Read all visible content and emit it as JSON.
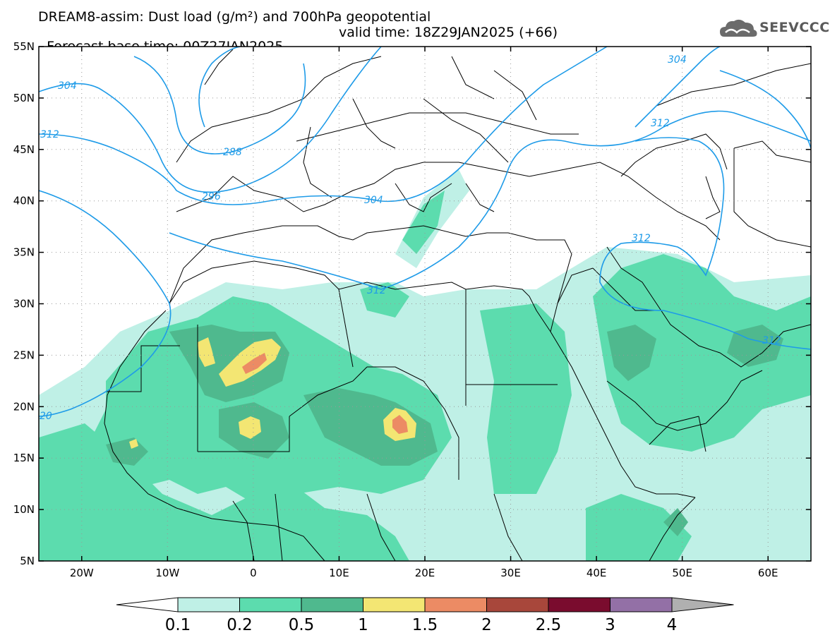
{
  "header": {
    "line1": "DREAM8-assim: Dust load (g/m²) and 700hPa geopotential",
    "line2_base": "Forecast base time: 00Z27JAN2025",
    "line2_valid": "valid time: 18Z29JAN2025 (+66)"
  },
  "logo": {
    "text": "SEEVCCC",
    "icon": "cloud-icon"
  },
  "map": {
    "lon_range": [
      -25,
      65
    ],
    "lat_range": [
      5,
      55
    ],
    "lat_ticks": [
      "55N",
      "50N",
      "45N",
      "40N",
      "35N",
      "30N",
      "25N",
      "20N",
      "15N",
      "10N",
      "5N"
    ],
    "lon_ticks": [
      "20W",
      "10W",
      "0",
      "10E",
      "20E",
      "30E",
      "40E",
      "50E",
      "60E"
    ],
    "isoline_labels": [
      "304",
      "312",
      "288",
      "296",
      "304",
      "312",
      "312",
      "304",
      "312",
      "20",
      "312"
    ],
    "isoline_color": "#1e9be8"
  },
  "colorbar": {
    "labels": [
      "0.1",
      "0.2",
      "0.5",
      "1",
      "1.5",
      "2",
      "2.5",
      "3",
      "4"
    ],
    "colors": [
      "#bff0e6",
      "#5cdcae",
      "#4fb98e",
      "#f3e673",
      "#ec8b64",
      "#a8473b",
      "#7a0c2e",
      "#9370a6",
      "#b0b0b0"
    ],
    "under_color": "#ffffff"
  }
}
